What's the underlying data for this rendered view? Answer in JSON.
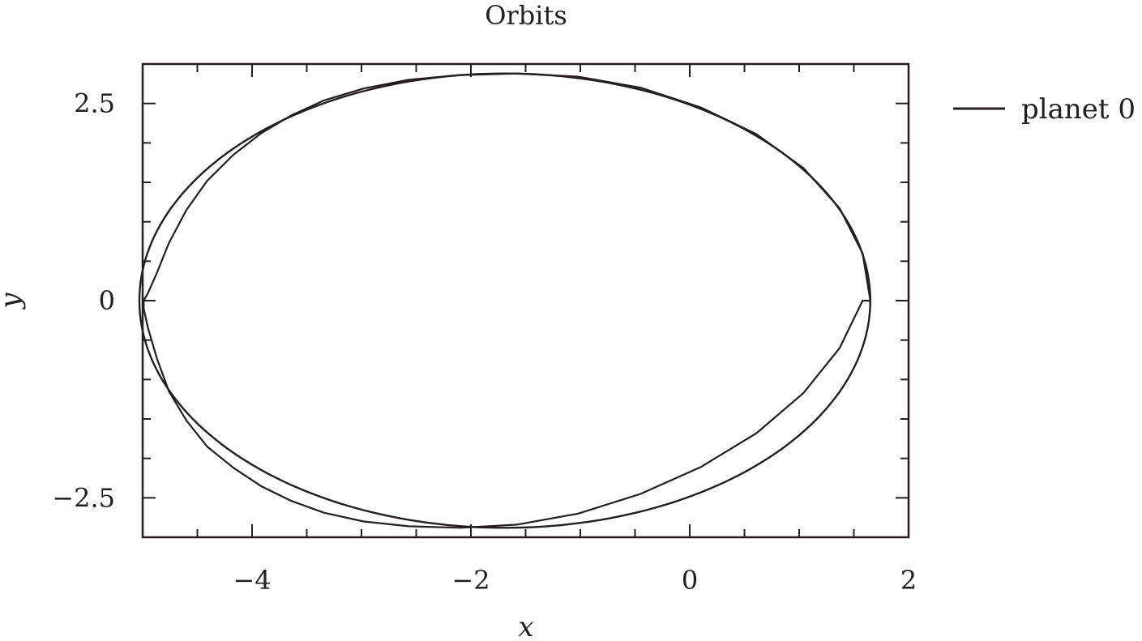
{
  "chart_data": {
    "type": "line",
    "title": "Orbits",
    "xlabel": "x",
    "ylabel": "y",
    "xlim": [
      -5.0,
      2.0
    ],
    "ylim": [
      -3.0,
      3.0
    ],
    "x_ticks": [
      -4,
      -2,
      0,
      2
    ],
    "x_tick_labels": [
      "−4",
      "−2",
      "0",
      "2"
    ],
    "y_ticks": [
      -2.5,
      0,
      2.5
    ],
    "y_tick_labels": [
      "−2.5",
      "0",
      "2.5"
    ],
    "grid": false,
    "legend_position": "outside-right",
    "line_color": "#231f20",
    "series": [
      {
        "name": "planet 0",
        "center": [
          -1.69,
          0.0
        ],
        "semi_major_axis": 3.34,
        "semi_minor_axis": 2.88,
        "x": [
          1.65,
          1.58,
          1.37,
          1.04,
          0.61,
          0.1,
          -0.45,
          -1.02,
          -1.58,
          -2.1,
          -2.57,
          -2.98,
          -3.34,
          -3.64,
          -3.92,
          -4.17,
          -4.41,
          -4.6,
          -4.76,
          -4.87,
          -4.95,
          -4.99,
          -4.99,
          -4.95,
          -4.87,
          -4.76,
          -4.6,
          -4.41,
          -4.17,
          -3.92,
          -3.64,
          -3.34,
          -2.98,
          -2.57,
          -2.1,
          -1.58,
          -1.02,
          -0.45,
          0.1,
          0.61,
          1.04,
          1.37,
          1.58,
          1.65
        ],
        "y": [
          0.0,
          0.6,
          1.17,
          1.68,
          2.11,
          2.45,
          2.7,
          2.84,
          2.88,
          2.86,
          2.8,
          2.69,
          2.54,
          2.35,
          2.12,
          1.85,
          1.52,
          1.15,
          0.73,
          0.35,
          0.1,
          0.0,
          -0.1,
          -0.35,
          -0.73,
          -1.15,
          -1.52,
          -1.85,
          -2.12,
          -2.35,
          -2.54,
          -2.69,
          -2.8,
          -2.86,
          -2.88,
          -2.84,
          -2.7,
          -2.45,
          -2.11,
          -1.68,
          -1.17,
          -0.6,
          0.0,
          0.0
        ]
      }
    ]
  }
}
